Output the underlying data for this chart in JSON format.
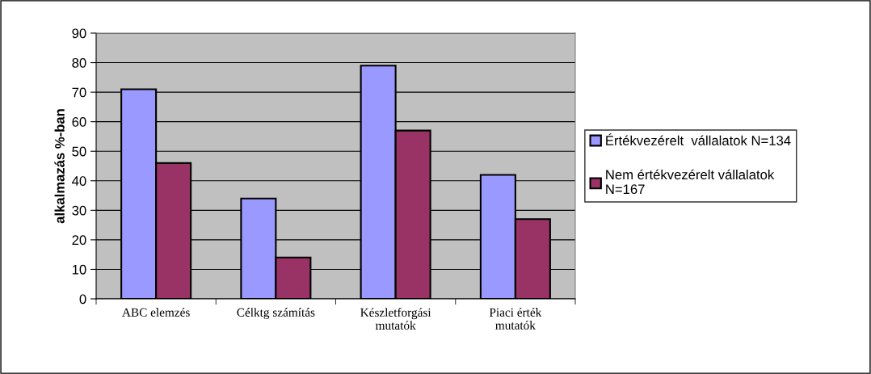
{
  "chart_data": {
    "type": "bar",
    "ylabel": "alkalmazás %-ban",
    "categories": [
      "ABC elemzés",
      "Célktg számítás",
      "Készletforgási\nmutatók",
      "Piaci érték\nmutatók"
    ],
    "series": [
      {
        "name": "Értékvezérelt  vállalatok N=134",
        "color": "#9999ff",
        "values": [
          71,
          34,
          79,
          42
        ]
      },
      {
        "name": "Nem értékvezérelt vállalatok\nN=167",
        "color": "#993366",
        "values": [
          46,
          14,
          57,
          27
        ]
      }
    ],
    "ylim": [
      0,
      90
    ],
    "yticks": [
      0,
      10,
      20,
      30,
      40,
      50,
      60,
      70,
      80,
      90
    ],
    "grid": "y",
    "legend": "right"
  }
}
